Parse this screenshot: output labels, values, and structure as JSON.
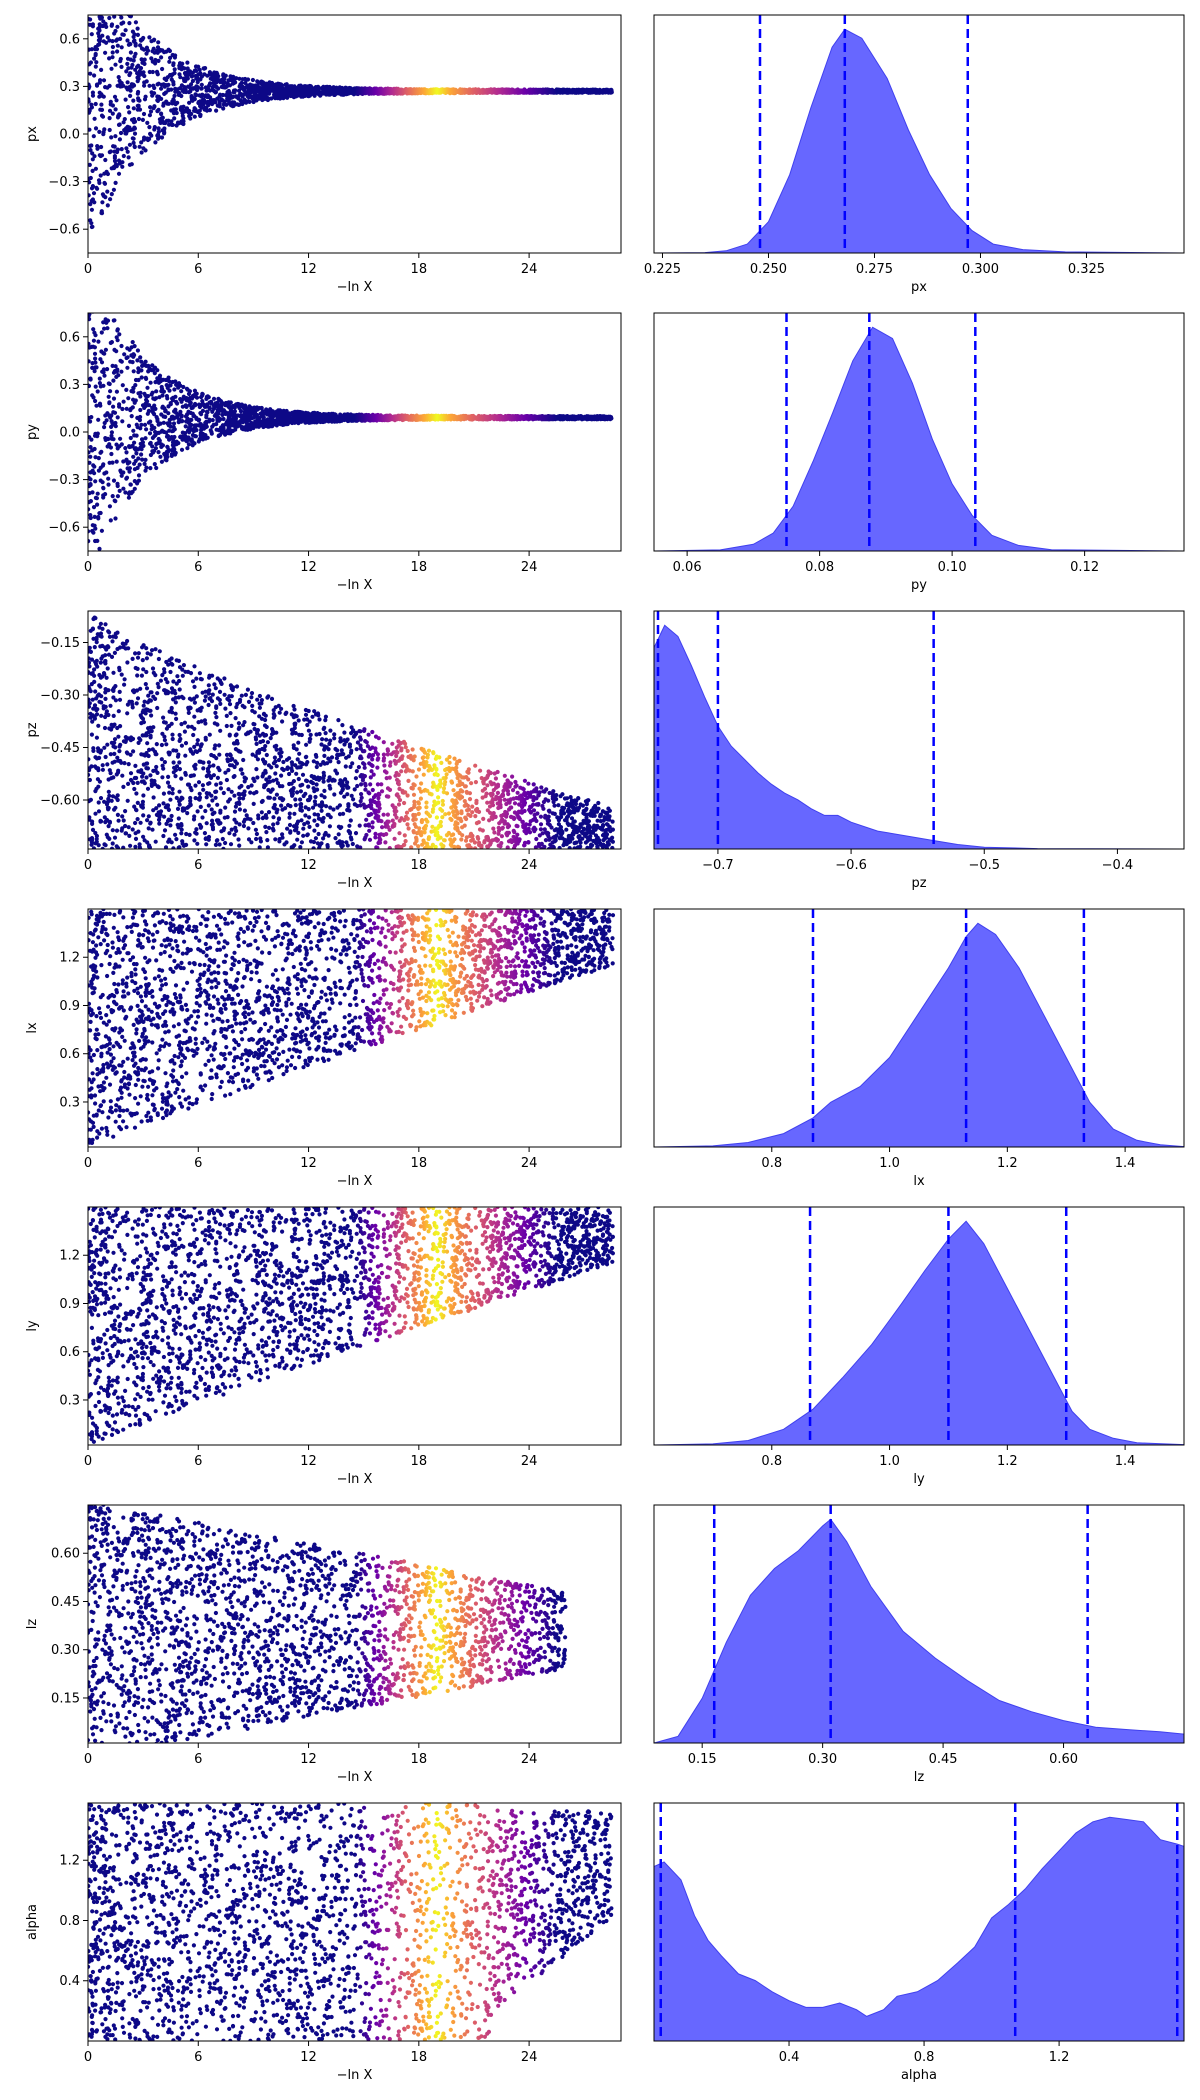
{
  "figure": {
    "trace_xlabel": "−ln X",
    "trace_xticks": [
      "0",
      "6",
      "12",
      "18",
      "24"
    ],
    "colormap": "plasma",
    "kde_color": "#5a5aff",
    "quantile_line_color": "#0000ff"
  },
  "chart_data": [
    {
      "type": "scatter",
      "panel": "trace",
      "ylabel": "px",
      "xlim": [
        0,
        29
      ],
      "ylim": [
        -0.75,
        0.75
      ],
      "yticks": [
        -0.6,
        -0.3,
        0.0,
        0.3,
        0.6
      ],
      "ytick_labels": [
        "−0.6",
        "−0.3",
        "0.0",
        "0.3",
        "0.6"
      ],
      "envelope": {
        "center": 0.27,
        "half_width_at_0": 1.0,
        "tail_ln_x": 28.5
      },
      "density_peak_ln_x": 18
    },
    {
      "type": "area",
      "panel": "kde",
      "xlabel": "px",
      "xlim": [
        0.223,
        0.348
      ],
      "xticks": [
        0.225,
        0.25,
        0.275,
        0.3,
        0.325
      ],
      "xtick_labels": [
        "0.225",
        "0.250",
        "0.275",
        "0.300",
        "0.325"
      ],
      "quantiles": [
        0.248,
        0.268,
        0.297
      ],
      "curve": [
        [
          0.223,
          0
        ],
        [
          0.235,
          0.002
        ],
        [
          0.24,
          0.01
        ],
        [
          0.245,
          0.04
        ],
        [
          0.25,
          0.14
        ],
        [
          0.255,
          0.35
        ],
        [
          0.26,
          0.65
        ],
        [
          0.265,
          0.92
        ],
        [
          0.268,
          1.0
        ],
        [
          0.272,
          0.96
        ],
        [
          0.278,
          0.78
        ],
        [
          0.283,
          0.55
        ],
        [
          0.288,
          0.35
        ],
        [
          0.293,
          0.2
        ],
        [
          0.298,
          0.1
        ],
        [
          0.303,
          0.04
        ],
        [
          0.31,
          0.015
        ],
        [
          0.32,
          0.005
        ],
        [
          0.348,
          0
        ]
      ]
    },
    {
      "type": "scatter",
      "panel": "trace",
      "ylabel": "py",
      "xlim": [
        0,
        29
      ],
      "ylim": [
        -0.75,
        0.75
      ],
      "yticks": [
        -0.6,
        -0.3,
        0.0,
        0.3,
        0.6
      ],
      "ytick_labels": [
        "−0.6",
        "−0.3",
        "0.0",
        "0.3",
        "0.6"
      ],
      "envelope": {
        "center": 0.09,
        "half_width_at_0": 1.0,
        "tail_ln_x": 28.5
      },
      "density_peak_ln_x": 18
    },
    {
      "type": "area",
      "panel": "kde",
      "xlabel": "py",
      "xlim": [
        0.055,
        0.135
      ],
      "xticks": [
        0.06,
        0.08,
        0.1,
        0.12
      ],
      "xtick_labels": [
        "0.06",
        "0.08",
        "0.10",
        "0.12"
      ],
      "quantiles": [
        0.075,
        0.0875,
        0.1035
      ],
      "curve": [
        [
          0.055,
          0
        ],
        [
          0.065,
          0.005
        ],
        [
          0.07,
          0.03
        ],
        [
          0.073,
          0.08
        ],
        [
          0.076,
          0.2
        ],
        [
          0.079,
          0.4
        ],
        [
          0.082,
          0.62
        ],
        [
          0.085,
          0.85
        ],
        [
          0.088,
          1.0
        ],
        [
          0.091,
          0.95
        ],
        [
          0.094,
          0.75
        ],
        [
          0.097,
          0.5
        ],
        [
          0.1,
          0.3
        ],
        [
          0.103,
          0.16
        ],
        [
          0.106,
          0.07
        ],
        [
          0.11,
          0.025
        ],
        [
          0.115,
          0.006
        ],
        [
          0.135,
          0
        ]
      ]
    },
    {
      "type": "scatter",
      "panel": "trace",
      "ylabel": "pz",
      "xlim": [
        0,
        29
      ],
      "ylim": [
        -0.74,
        -0.06
      ],
      "yticks": [
        -0.6,
        -0.45,
        -0.3,
        -0.15
      ],
      "ytick_labels": [
        "−0.60",
        "−0.45",
        "−0.30",
        "−0.15"
      ],
      "envelope": {
        "floor": -0.74,
        "top_at_0": -0.06,
        "top_at_end": -0.62,
        "tail_ln_x": 28.5
      },
      "density_peak_ln_x": 18
    },
    {
      "type": "area",
      "panel": "kde",
      "xlabel": "pz",
      "xlim": [
        -0.748,
        -0.35
      ],
      "xticks": [
        -0.7,
        -0.6,
        -0.5,
        -0.4
      ],
      "xtick_labels": [
        "−0.7",
        "−0.6",
        "−0.5",
        "−0.4"
      ],
      "quantiles": [
        -0.745,
        -0.7,
        -0.538
      ],
      "curve": [
        [
          -0.748,
          0.9
        ],
        [
          -0.74,
          1.0
        ],
        [
          -0.73,
          0.95
        ],
        [
          -0.72,
          0.82
        ],
        [
          -0.71,
          0.68
        ],
        [
          -0.7,
          0.55
        ],
        [
          -0.69,
          0.46
        ],
        [
          -0.68,
          0.4
        ],
        [
          -0.67,
          0.34
        ],
        [
          -0.66,
          0.29
        ],
        [
          -0.65,
          0.25
        ],
        [
          -0.64,
          0.22
        ],
        [
          -0.63,
          0.18
        ],
        [
          -0.62,
          0.15
        ],
        [
          -0.61,
          0.15
        ],
        [
          -0.6,
          0.12
        ],
        [
          -0.58,
          0.08
        ],
        [
          -0.56,
          0.06
        ],
        [
          -0.54,
          0.04
        ],
        [
          -0.52,
          0.02
        ],
        [
          -0.5,
          0.008
        ],
        [
          -0.46,
          0.002
        ],
        [
          -0.35,
          0
        ]
      ]
    },
    {
      "type": "scatter",
      "panel": "trace",
      "ylabel": "lx",
      "xlim": [
        0,
        29
      ],
      "ylim": [
        0.02,
        1.5
      ],
      "yticks": [
        0.3,
        0.6,
        0.9,
        1.2
      ],
      "ytick_labels": [
        "0.3",
        "0.6",
        "0.9",
        "1.2"
      ],
      "envelope": {
        "ceiling": 1.5,
        "bottom_at_0": 0.02,
        "bottom_at_end": 1.15,
        "tail_ln_x": 28.5
      },
      "density_peak_ln_x": 18
    },
    {
      "type": "area",
      "panel": "kde",
      "xlabel": "lx",
      "xlim": [
        0.6,
        1.5
      ],
      "xticks": [
        0.8,
        1.0,
        1.2,
        1.4
      ],
      "xtick_labels": [
        "0.8",
        "1.0",
        "1.2",
        "1.4"
      ],
      "quantiles": [
        0.87,
        1.13,
        1.33
      ],
      "curve": [
        [
          0.6,
          0
        ],
        [
          0.7,
          0.005
        ],
        [
          0.76,
          0.02
        ],
        [
          0.82,
          0.06
        ],
        [
          0.87,
          0.13
        ],
        [
          0.9,
          0.2
        ],
        [
          0.95,
          0.27
        ],
        [
          1.0,
          0.4
        ],
        [
          1.05,
          0.6
        ],
        [
          1.1,
          0.8
        ],
        [
          1.13,
          0.94
        ],
        [
          1.15,
          1.0
        ],
        [
          1.18,
          0.95
        ],
        [
          1.22,
          0.8
        ],
        [
          1.26,
          0.6
        ],
        [
          1.3,
          0.4
        ],
        [
          1.34,
          0.2
        ],
        [
          1.38,
          0.08
        ],
        [
          1.42,
          0.03
        ],
        [
          1.46,
          0.01
        ],
        [
          1.5,
          0.002
        ]
      ]
    },
    {
      "type": "scatter",
      "panel": "trace",
      "ylabel": "ly",
      "xlim": [
        0,
        29
      ],
      "ylim": [
        0.02,
        1.5
      ],
      "yticks": [
        0.3,
        0.6,
        0.9,
        1.2
      ],
      "ytick_labels": [
        "0.3",
        "0.6",
        "0.9",
        "1.2"
      ],
      "envelope": {
        "ceiling": 1.5,
        "bottom_at_0": 0.02,
        "bottom_at_end": 1.15,
        "tail_ln_x": 28.5
      },
      "density_peak_ln_x": 18
    },
    {
      "type": "area",
      "panel": "kde",
      "xlabel": "ly",
      "xlim": [
        0.6,
        1.5
      ],
      "xticks": [
        0.8,
        1.0,
        1.2,
        1.4
      ],
      "xtick_labels": [
        "0.8",
        "1.0",
        "1.2",
        "1.4"
      ],
      "quantiles": [
        0.865,
        1.1,
        1.3
      ],
      "curve": [
        [
          0.6,
          0
        ],
        [
          0.7,
          0.005
        ],
        [
          0.76,
          0.02
        ],
        [
          0.82,
          0.07
        ],
        [
          0.87,
          0.16
        ],
        [
          0.92,
          0.3
        ],
        [
          0.97,
          0.45
        ],
        [
          1.02,
          0.63
        ],
        [
          1.06,
          0.78
        ],
        [
          1.1,
          0.92
        ],
        [
          1.13,
          1.0
        ],
        [
          1.16,
          0.9
        ],
        [
          1.2,
          0.7
        ],
        [
          1.24,
          0.5
        ],
        [
          1.28,
          0.3
        ],
        [
          1.31,
          0.15
        ],
        [
          1.34,
          0.07
        ],
        [
          1.38,
          0.03
        ],
        [
          1.42,
          0.01
        ],
        [
          1.5,
          0.002
        ]
      ]
    },
    {
      "type": "scatter",
      "panel": "trace",
      "ylabel": "lz",
      "xlim": [
        0,
        29
      ],
      "ylim": [
        0.01,
        0.75
      ],
      "yticks": [
        0.15,
        0.3,
        0.45,
        0.6
      ],
      "ytick_labels": [
        "0.15",
        "0.30",
        "0.45",
        "0.60"
      ],
      "envelope": {
        "center": 0.36,
        "half_width_at_0": 0.4,
        "half_width_at_end": 0.12,
        "end_ln_x": 26
      },
      "density_peak_ln_x": 18
    },
    {
      "type": "area",
      "panel": "kde",
      "xlabel": "lz",
      "xlim": [
        0.09,
        0.75
      ],
      "xticks": [
        0.15,
        0.3,
        0.45,
        0.6
      ],
      "xtick_labels": [
        "0.15",
        "0.30",
        "0.45",
        "0.60"
      ],
      "quantiles": [
        0.165,
        0.31,
        0.63
      ],
      "curve": [
        [
          0.09,
          0
        ],
        [
          0.12,
          0.03
        ],
        [
          0.15,
          0.2
        ],
        [
          0.18,
          0.45
        ],
        [
          0.21,
          0.66
        ],
        [
          0.24,
          0.78
        ],
        [
          0.27,
          0.86
        ],
        [
          0.3,
          0.97
        ],
        [
          0.31,
          1.0
        ],
        [
          0.33,
          0.9
        ],
        [
          0.36,
          0.7
        ],
        [
          0.4,
          0.5
        ],
        [
          0.44,
          0.38
        ],
        [
          0.48,
          0.28
        ],
        [
          0.52,
          0.19
        ],
        [
          0.56,
          0.14
        ],
        [
          0.6,
          0.1
        ],
        [
          0.64,
          0.07
        ],
        [
          0.68,
          0.06
        ],
        [
          0.72,
          0.05
        ],
        [
          0.75,
          0.04
        ]
      ]
    },
    {
      "type": "scatter",
      "panel": "trace",
      "ylabel": "alpha",
      "xlim": [
        0,
        29
      ],
      "ylim": [
        0.0,
        1.58
      ],
      "yticks": [
        0.4,
        0.8,
        1.2
      ],
      "ytick_labels": [
        "0.4",
        "0.8",
        "1.2"
      ],
      "envelope": {
        "floor": 0.0,
        "ceiling": 1.58,
        "pinch_ln_x": 22,
        "end_ln_x": 28.5
      },
      "density_peak_ln_x": 18
    },
    {
      "type": "area",
      "panel": "kde",
      "xlabel": "alpha",
      "xlim": [
        0.0,
        1.57
      ],
      "xticks": [
        0.4,
        0.8,
        1.2
      ],
      "xtick_labels": [
        "0.4",
        "0.8",
        "1.2"
      ],
      "quantiles": [
        0.02,
        1.07,
        1.55
      ],
      "curve": [
        [
          0.0,
          0.78
        ],
        [
          0.03,
          0.8
        ],
        [
          0.08,
          0.72
        ],
        [
          0.12,
          0.56
        ],
        [
          0.16,
          0.45
        ],
        [
          0.2,
          0.38
        ],
        [
          0.25,
          0.3
        ],
        [
          0.3,
          0.27
        ],
        [
          0.35,
          0.22
        ],
        [
          0.4,
          0.18
        ],
        [
          0.45,
          0.15
        ],
        [
          0.5,
          0.15
        ],
        [
          0.55,
          0.17
        ],
        [
          0.6,
          0.14
        ],
        [
          0.63,
          0.11
        ],
        [
          0.68,
          0.14
        ],
        [
          0.72,
          0.2
        ],
        [
          0.78,
          0.22
        ],
        [
          0.84,
          0.27
        ],
        [
          0.9,
          0.35
        ],
        [
          0.95,
          0.42
        ],
        [
          1.0,
          0.55
        ],
        [
          1.05,
          0.61
        ],
        [
          1.1,
          0.68
        ],
        [
          1.15,
          0.77
        ],
        [
          1.2,
          0.85
        ],
        [
          1.25,
          0.93
        ],
        [
          1.3,
          0.98
        ],
        [
          1.35,
          1.0
        ],
        [
          1.4,
          0.99
        ],
        [
          1.45,
          0.98
        ],
        [
          1.5,
          0.9
        ],
        [
          1.55,
          0.88
        ],
        [
          1.57,
          0.87
        ]
      ]
    }
  ]
}
